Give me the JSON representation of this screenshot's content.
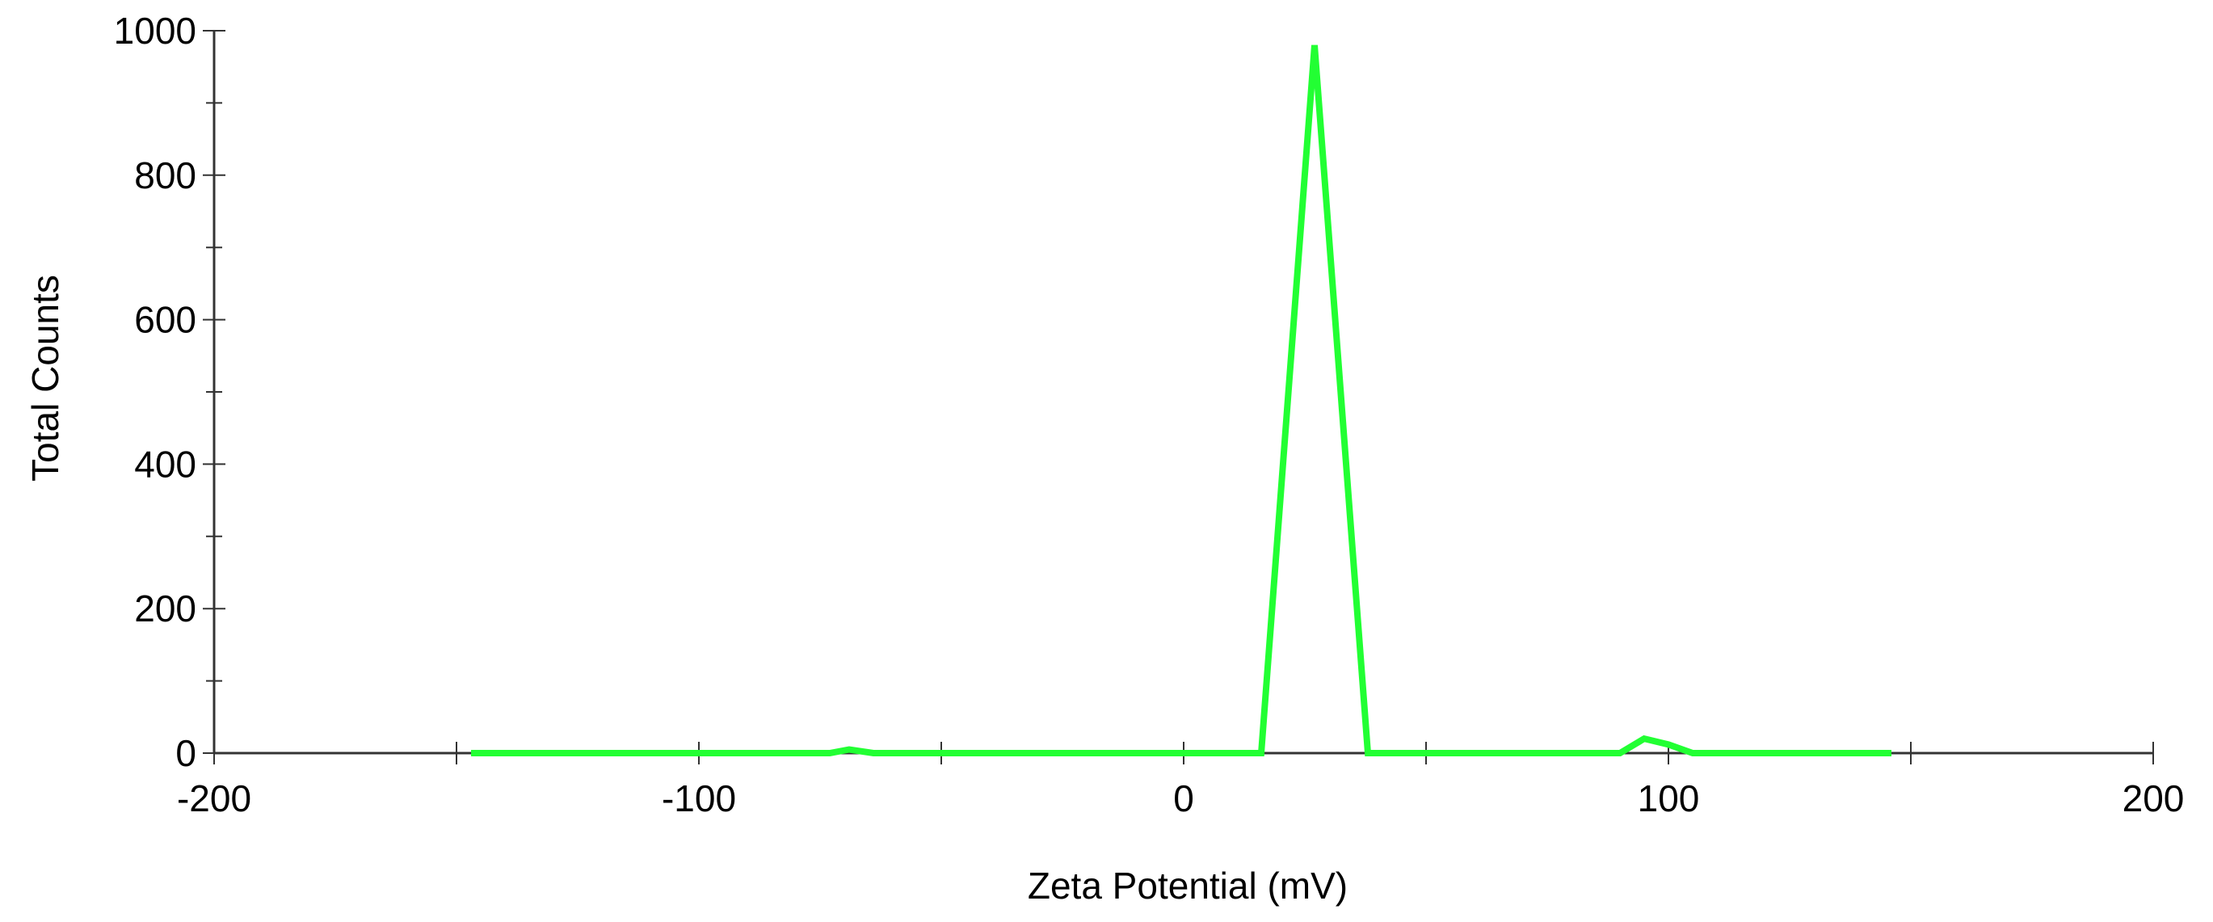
{
  "chart_data": {
    "type": "line",
    "title": "",
    "xlabel": "Zeta Potential (mV)",
    "ylabel": "Total Counts",
    "xlim": [
      -200,
      200
    ],
    "ylim": [
      0,
      1000
    ],
    "xticks": [
      -200,
      -100,
      0,
      100,
      200
    ],
    "xticks_minor": [
      -150,
      -50,
      50,
      150
    ],
    "yticks": [
      0,
      200,
      400,
      600,
      800,
      1000
    ],
    "yticks_minor": [
      100,
      300,
      500,
      700,
      900
    ],
    "grid": false,
    "legend": "none",
    "series": [
      {
        "color": "#22ff33",
        "x": [
          -147,
          -73,
          -69,
          -64,
          16,
          27,
          38,
          90,
          95,
          100,
          105,
          146
        ],
        "y": [
          0,
          0,
          5,
          0,
          0,
          980,
          0,
          0,
          20,
          12,
          0,
          0
        ]
      }
    ]
  }
}
